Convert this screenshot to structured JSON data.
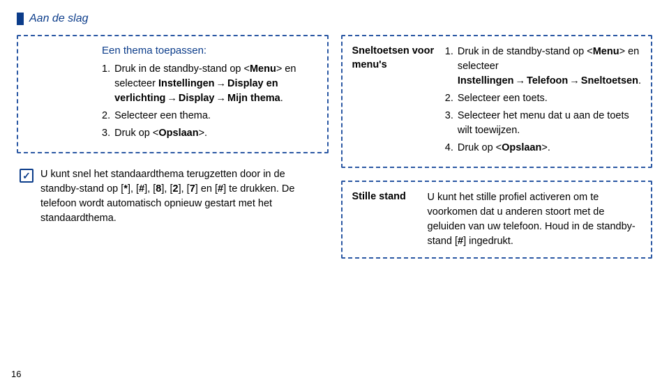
{
  "header": {
    "label": "Aan de slag"
  },
  "page_number": "16",
  "left": {
    "theme": {
      "title": "Een thema toepassen:",
      "steps": [
        {
          "num": "1.",
          "html": "Druk in de standby-stand op &lt;<b>Menu</b>&gt; en selecteer <b>Instellingen</b><span class='arrow'>→</span><b>Display en verlichting</b><span class='arrow'>→</span><b>Display</b><span class='arrow'>→</span><b>Mijn thema</b>."
        },
        {
          "num": "2.",
          "html": "Selecteer een thema."
        },
        {
          "num": "3.",
          "html": "Druk op &lt;<b>Opslaan</b>&gt;."
        }
      ]
    },
    "tip": {
      "html": "U kunt snel het standaardthema terugzetten door in de standby-stand op [<b>*</b>], [<b>#</b>], [<b>8</b>], [<b>2</b>], [<b>7</b>] en [<b>#</b>] te drukken. De telefoon wordt automatisch opnieuw gestart met het standaardthema."
    }
  },
  "right": {
    "shortcuts": {
      "label": "Sneltoetsen voor menu's",
      "steps": [
        {
          "num": "1.",
          "html": "Druk in de standby-stand op &lt;<b>Menu</b>&gt; en selecteer <b>Instellingen</b><span class='arrow'>→</span><b>Telefoon</b><span class='arrow'>→</span><b>Sneltoetsen</b>."
        },
        {
          "num": "2.",
          "html": "Selecteer een toets."
        },
        {
          "num": "3.",
          "html": "Selecteer het menu dat u aan de toets wilt toewijzen."
        },
        {
          "num": "4.",
          "html": "Druk op &lt;<b>Opslaan</b>&gt;."
        }
      ]
    },
    "silent": {
      "label": "Stille stand",
      "html": "U kunt het stille profiel activeren om te voorkomen dat u anderen stoort met de geluiden van uw telefoon. Houd in de standby-stand [<b>#</b>] ingedrukt."
    }
  }
}
